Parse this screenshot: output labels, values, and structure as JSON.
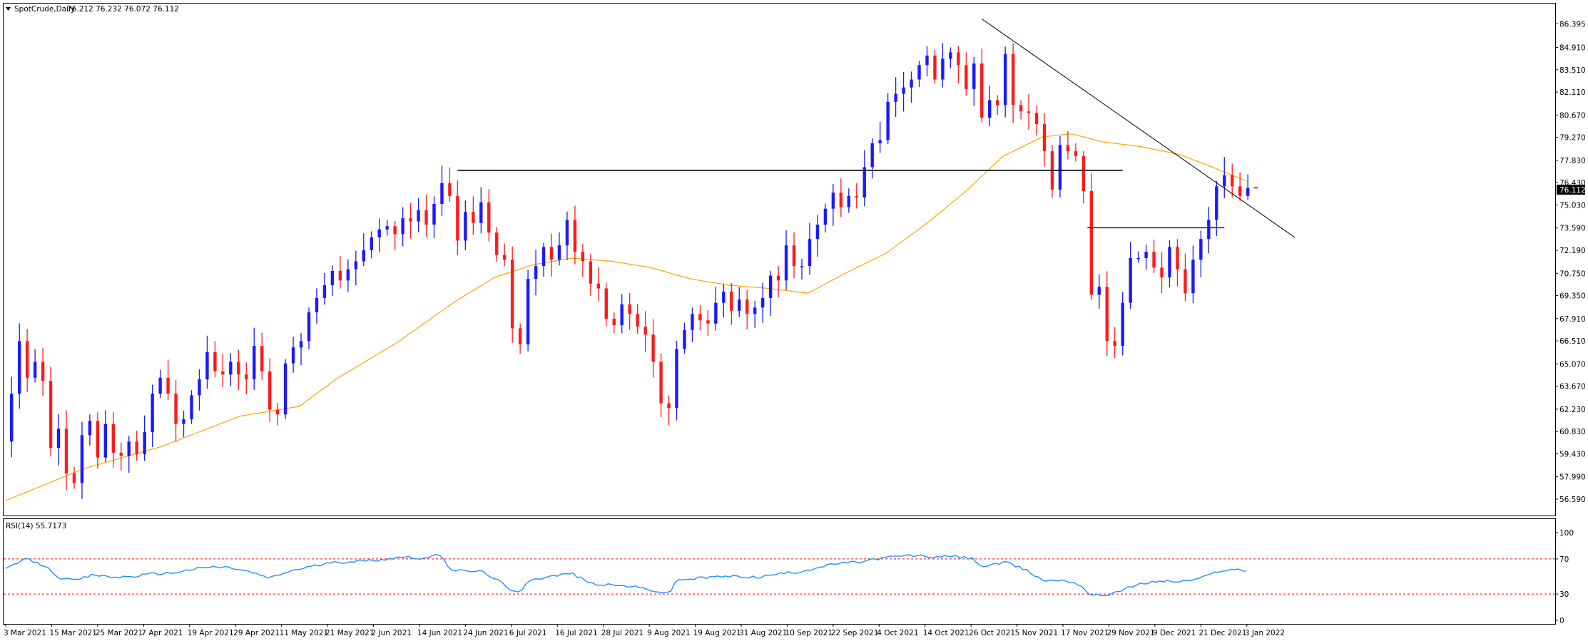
{
  "chart_data": [
    {
      "type": "candlestick",
      "title": "SpotCrude,Daily",
      "ohlc_readout": "76.212 76.232 76.072 76.112",
      "last_price_label": "76.112",
      "ylim": [
        56.59,
        86.9
      ],
      "y_ticks": [
        "86.395",
        "84.910",
        "83.510",
        "82.110",
        "80.670",
        "79.270",
        "77.830",
        "76.430",
        "75.030",
        "73.590",
        "72.190",
        "70.750",
        "69.350",
        "67.910",
        "66.510",
        "65.070",
        "63.670",
        "62.230",
        "60.830",
        "59.430",
        "57.990",
        "56.590"
      ],
      "x_ticks": [
        "3 Mar 2021",
        "15 Mar 2021",
        "25 Mar 2021",
        "7 Apr 2021",
        "19 Apr 2021",
        "29 Apr 2021",
        "11 May 2021",
        "21 May 2021",
        "2 Jun 2021",
        "14 Jun 2021",
        "24 Jun 2021",
        "6 Jul 2021",
        "16 Jul 2021",
        "28 Jul 2021",
        "9 Aug 2021",
        "19 Aug 2021",
        "31 Aug 2021",
        "10 Sep 2021",
        "22 Sep 2021",
        "4 Oct 2021",
        "14 Oct 2021",
        "26 Oct 2021",
        "5 Nov 2021",
        "17 Nov 2021",
        "29 Nov 2021",
        "9 Dec 2021",
        "21 Dec 2021",
        "3 Jan 2022"
      ],
      "colors": {
        "up": "#1a1aff",
        "down": "#ff1a1a",
        "ma": "#ffa500",
        "lines": "#000000"
      },
      "close_path": [
        [
          0,
          60.2
        ],
        [
          3,
          63.2
        ],
        [
          7,
          66.5
        ],
        [
          11,
          64.2
        ],
        [
          15,
          65.2
        ],
        [
          19,
          64.0
        ],
        [
          23,
          59.8
        ],
        [
          27,
          61.0
        ],
        [
          31,
          58.2
        ],
        [
          35,
          57.6
        ],
        [
          39,
          60.6
        ],
        [
          43,
          61.5
        ],
        [
          47,
          59.2
        ],
        [
          51,
          61.3
        ],
        [
          55,
          59.5
        ],
        [
          59,
          59.3
        ],
        [
          63,
          60.2
        ],
        [
          67,
          59.4
        ],
        [
          71,
          60.8
        ],
        [
          75,
          63.2
        ],
        [
          79,
          64.2
        ],
        [
          83,
          63.2
        ],
        [
          87,
          61.3
        ],
        [
          91,
          61.6
        ],
        [
          95,
          63.1
        ],
        [
          99,
          64.1
        ],
        [
          103,
          65.8
        ],
        [
          107,
          64.6
        ],
        [
          111,
          64.4
        ],
        [
          115,
          65.2
        ],
        [
          119,
          64.4
        ],
        [
          123,
          64.1
        ],
        [
          127,
          66.2
        ],
        [
          131,
          64.6
        ],
        [
          135,
          62.2
        ],
        [
          139,
          61.9
        ],
        [
          143,
          65.1
        ],
        [
          147,
          66.1
        ],
        [
          151,
          66.5
        ],
        [
          155,
          68.3
        ],
        [
          159,
          69.2
        ],
        [
          163,
          70.0
        ],
        [
          167,
          70.9
        ],
        [
          171,
          70.3
        ],
        [
          175,
          71.0
        ],
        [
          179,
          71.5
        ],
        [
          183,
          72.2
        ],
        [
          187,
          73.0
        ],
        [
          191,
          73.5
        ],
        [
          195,
          73.7
        ],
        [
          199,
          73.2
        ],
        [
          203,
          74.2
        ],
        [
          207,
          74.0
        ],
        [
          211,
          74.7
        ],
        [
          215,
          73.8
        ],
        [
          219,
          75.1
        ],
        [
          223,
          76.4
        ],
        [
          227,
          75.6
        ],
        [
          231,
          72.8
        ],
        [
          235,
          74.6
        ],
        [
          239,
          73.9
        ],
        [
          243,
          75.2
        ],
        [
          247,
          73.3
        ],
        [
          251,
          71.9
        ],
        [
          255,
          71.6
        ],
        [
          259,
          67.3
        ],
        [
          263,
          66.3
        ],
        [
          267,
          70.4
        ],
        [
          271,
          71.2
        ],
        [
          275,
          72.4
        ],
        [
          279,
          71.6
        ],
        [
          283,
          72.5
        ],
        [
          287,
          74.1
        ],
        [
          291,
          72.1
        ],
        [
          295,
          71.5
        ],
        [
          299,
          70.1
        ],
        [
          303,
          69.8
        ],
        [
          307,
          67.9
        ],
        [
          311,
          67.5
        ],
        [
          315,
          68.8
        ],
        [
          319,
          68.2
        ],
        [
          323,
          67.4
        ],
        [
          327,
          66.9
        ],
        [
          331,
          65.2
        ],
        [
          335,
          62.6
        ],
        [
          339,
          62.3
        ],
        [
          343,
          66.0
        ],
        [
          347,
          67.2
        ],
        [
          351,
          68.2
        ],
        [
          355,
          67.8
        ],
        [
          359,
          67.6
        ],
        [
          363,
          68.9
        ],
        [
          367,
          69.6
        ],
        [
          371,
          68.4
        ],
        [
          375,
          69.1
        ],
        [
          379,
          68.2
        ],
        [
          383,
          68.6
        ],
        [
          387,
          69.2
        ],
        [
          391,
          70.6
        ],
        [
          395,
          70.3
        ],
        [
          399,
          72.5
        ],
        [
          403,
          71.2
        ],
        [
          407,
          71.2
        ],
        [
          411,
          72.9
        ],
        [
          415,
          73.8
        ],
        [
          419,
          74.8
        ],
        [
          423,
          75.8
        ],
        [
          427,
          74.9
        ],
        [
          431,
          75.6
        ],
        [
          435,
          75.5
        ],
        [
          439,
          77.4
        ],
        [
          443,
          78.9
        ],
        [
          447,
          79.1
        ],
        [
          451,
          81.5
        ],
        [
          455,
          82.0
        ],
        [
          459,
          82.4
        ],
        [
          463,
          82.9
        ],
        [
          467,
          83.8
        ],
        [
          471,
          84.4
        ],
        [
          475,
          82.9
        ],
        [
          479,
          84.2
        ],
        [
          483,
          84.6
        ],
        [
          487,
          83.8
        ],
        [
          491,
          82.3
        ],
        [
          495,
          83.9
        ],
        [
          499,
          80.5
        ],
        [
          503,
          81.6
        ],
        [
          507,
          81.3
        ],
        [
          511,
          84.5
        ],
        [
          515,
          81.3
        ],
        [
          519,
          80.9
        ],
        [
          523,
          80.8
        ],
        [
          527,
          80.1
        ],
        [
          531,
          78.4
        ],
        [
          535,
          76.0
        ],
        [
          539,
          78.8
        ],
        [
          543,
          78.4
        ],
        [
          547,
          78.1
        ],
        [
          551,
          75.9
        ],
        [
          555,
          69.4
        ],
        [
          559,
          69.9
        ],
        [
          563,
          66.5
        ],
        [
          567,
          66.2
        ],
        [
          571,
          68.9
        ],
        [
          575,
          71.7
        ],
        [
          579,
          71.7
        ],
        [
          583,
          72.1
        ],
        [
          587,
          71.1
        ],
        [
          591,
          70.5
        ],
        [
          595,
          72.4
        ],
        [
          599,
          71.0
        ],
        [
          603,
          69.5
        ],
        [
          607,
          71.6
        ],
        [
          611,
          72.9
        ],
        [
          615,
          74.1
        ],
        [
          619,
          76.2
        ],
        [
          623,
          76.9
        ],
        [
          627,
          76.2
        ],
        [
          631,
          75.6
        ],
        [
          635,
          76.1
        ]
      ],
      "ma_path": [
        [
          0,
          56.5
        ],
        [
          40,
          58.5
        ],
        [
          80,
          59.9
        ],
        [
          120,
          61.8
        ],
        [
          150,
          62.4
        ],
        [
          170,
          64.2
        ],
        [
          200,
          66.4
        ],
        [
          230,
          69.0
        ],
        [
          250,
          70.5
        ],
        [
          270,
          71.3
        ],
        [
          290,
          71.7
        ],
        [
          310,
          71.5
        ],
        [
          330,
          71.1
        ],
        [
          350,
          70.4
        ],
        [
          370,
          70.0
        ],
        [
          390,
          69.8
        ],
        [
          410,
          69.5
        ],
        [
          430,
          70.8
        ],
        [
          450,
          72.0
        ],
        [
          470,
          73.8
        ],
        [
          490,
          75.8
        ],
        [
          510,
          78.1
        ],
        [
          530,
          79.3
        ],
        [
          545,
          79.5
        ],
        [
          560,
          79.0
        ],
        [
          580,
          78.7
        ],
        [
          600,
          78.2
        ],
        [
          615,
          77.5
        ],
        [
          625,
          77.0
        ],
        [
          635,
          76.5
        ]
      ],
      "horizontal_levels": [
        {
          "price": 77.2,
          "from": 231,
          "to": 571
        },
        {
          "price": 73.6,
          "from": 553,
          "to": 623
        }
      ],
      "trendline": {
        "from": [
          499,
          86.7
        ],
        "to": [
          659,
          73.0
        ]
      }
    },
    {
      "type": "line",
      "title": "RSI(14) 55.7173",
      "ylim": [
        0,
        100
      ],
      "y_ticks": [
        "100",
        "70",
        "30",
        "0"
      ],
      "levels": [
        70,
        30
      ],
      "colors": {
        "line": "#1e90ff",
        "levels": "#ff0000"
      },
      "values_path": [
        [
          0,
          58
        ],
        [
          10,
          70
        ],
        [
          20,
          62
        ],
        [
          28,
          48
        ],
        [
          35,
          45
        ],
        [
          45,
          52
        ],
        [
          55,
          49
        ],
        [
          65,
          50
        ],
        [
          75,
          53
        ],
        [
          85,
          54
        ],
        [
          95,
          58
        ],
        [
          105,
          61
        ],
        [
          115,
          60
        ],
        [
          125,
          55
        ],
        [
          135,
          48
        ],
        [
          145,
          56
        ],
        [
          155,
          61
        ],
        [
          165,
          65
        ],
        [
          175,
          67
        ],
        [
          185,
          68
        ],
        [
          195,
          70
        ],
        [
          205,
          73
        ],
        [
          213,
          70
        ],
        [
          223,
          75
        ],
        [
          227,
          58
        ],
        [
          235,
          56
        ],
        [
          243,
          56
        ],
        [
          251,
          47
        ],
        [
          259,
          32
        ],
        [
          263,
          33
        ],
        [
          267,
          46
        ],
        [
          279,
          50
        ],
        [
          289,
          54
        ],
        [
          299,
          42
        ],
        [
          309,
          40
        ],
        [
          319,
          39
        ],
        [
          329,
          35
        ],
        [
          339,
          30
        ],
        [
          343,
          46
        ],
        [
          355,
          48
        ],
        [
          365,
          50
        ],
        [
          375,
          50
        ],
        [
          385,
          49
        ],
        [
          395,
          53
        ],
        [
          405,
          55
        ],
        [
          415,
          60
        ],
        [
          425,
          65
        ],
        [
          435,
          66
        ],
        [
          445,
          70
        ],
        [
          455,
          73
        ],
        [
          465,
          74
        ],
        [
          475,
          72
        ],
        [
          485,
          73
        ],
        [
          495,
          70
        ],
        [
          499,
          61
        ],
        [
          511,
          66
        ],
        [
          521,
          58
        ],
        [
          531,
          45
        ],
        [
          541,
          46
        ],
        [
          549,
          41
        ],
        [
          555,
          28
        ],
        [
          563,
          29
        ],
        [
          571,
          35
        ],
        [
          581,
          42
        ],
        [
          591,
          45
        ],
        [
          601,
          44
        ],
        [
          611,
          48
        ],
        [
          621,
          57
        ],
        [
          631,
          58
        ],
        [
          635,
          56
        ]
      ]
    }
  ]
}
